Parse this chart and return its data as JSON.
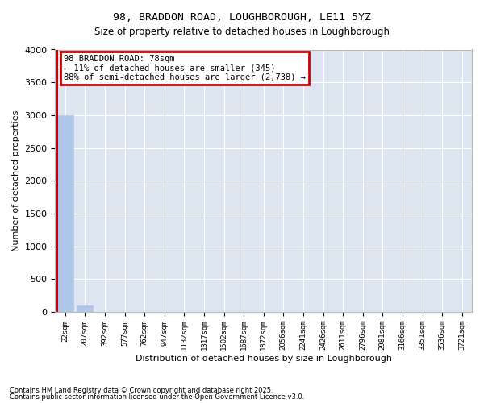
{
  "title": "98, BRADDON ROAD, LOUGHBOROUGH, LE11 5YZ",
  "subtitle": "Size of property relative to detached houses in Loughborough",
  "xlabel": "Distribution of detached houses by size in Loughborough",
  "ylabel": "Number of detached properties",
  "bar_color": "#aec6e8",
  "highlight_color": "#cc0000",
  "bg_color": "#dde6f0",
  "grid_color": "#ffffff",
  "annotation_box_color": "#cc0000",
  "annotation_lines": [
    "98 BRADDON ROAD: 78sqm",
    "← 11% of detached houses are smaller (345)",
    "88% of semi-detached houses are larger (2,738) →"
  ],
  "categories": [
    "22sqm",
    "207sqm",
    "392sqm",
    "577sqm",
    "762sqm",
    "947sqm",
    "1132sqm",
    "1317sqm",
    "1502sqm",
    "1687sqm",
    "1872sqm",
    "2056sqm",
    "2241sqm",
    "2426sqm",
    "2611sqm",
    "2796sqm",
    "2981sqm",
    "3166sqm",
    "3351sqm",
    "3536sqm",
    "3721sqm"
  ],
  "values": [
    3000,
    100,
    0,
    0,
    0,
    0,
    0,
    0,
    0,
    0,
    0,
    0,
    0,
    0,
    0,
    0,
    0,
    0,
    0,
    0,
    0
  ],
  "ylim": [
    0,
    4000
  ],
  "yticks": [
    0,
    500,
    1000,
    1500,
    2000,
    2500,
    3000,
    3500,
    4000
  ],
  "footnote1": "Contains HM Land Registry data © Crown copyright and database right 2025.",
  "footnote2": "Contains public sector information licensed under the Open Government Licence v3.0."
}
